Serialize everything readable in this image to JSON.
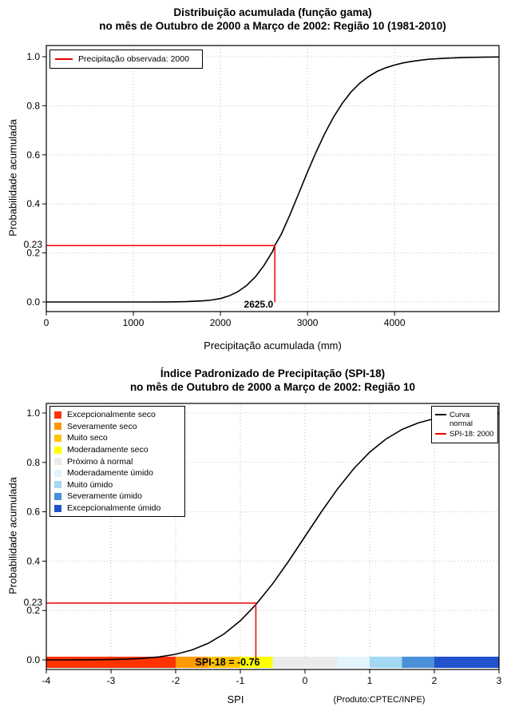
{
  "page": {
    "background": "#FFFFFF"
  },
  "chart_data": [
    {
      "type": "line",
      "title": "Distribuição acumulada (função gama)",
      "subtitle": "no mês de Outubro de 2000 a Março de 2002: Região 10 (1981-2010)",
      "xlabel": "Precipitação acumulada (mm)",
      "ylabel": "Probabilidade acumulada",
      "xlim": [
        0,
        5200
      ],
      "ylim": [
        0,
        1
      ],
      "xticks": [
        0,
        1000,
        2000,
        3000,
        4000
      ],
      "xtick_labels": [
        "0",
        "1000",
        "2000",
        "3000",
        "4000"
      ],
      "yticks": [
        0,
        0.2,
        0.4,
        0.6,
        0.8,
        1
      ],
      "ytick_labels": [
        "0.0",
        "0.2",
        "0.4",
        "0.6",
        "0.8",
        "1.0"
      ],
      "grid": true,
      "legend_position": "top-left",
      "series": [
        {
          "id": "gamma-cdf",
          "color": "#000000",
          "points": [
            [
              0,
              0
            ],
            [
              300,
              0
            ],
            [
              600,
              0
            ],
            [
              900,
              0
            ],
            [
              1200,
              0.0001
            ],
            [
              1400,
              0.0004
            ],
            [
              1600,
              0.0012
            ],
            [
              1800,
              0.0045
            ],
            [
              1900,
              0.008
            ],
            [
              2000,
              0.014
            ],
            [
              2100,
              0.025
            ],
            [
              2200,
              0.042
            ],
            [
              2300,
              0.067
            ],
            [
              2400,
              0.102
            ],
            [
              2500,
              0.149
            ],
            [
              2600,
              0.207
            ],
            [
              2625,
              0.23
            ],
            [
              2700,
              0.277
            ],
            [
              2800,
              0.357
            ],
            [
              2900,
              0.443
            ],
            [
              3000,
              0.53
            ],
            [
              3100,
              0.612
            ],
            [
              3200,
              0.688
            ],
            [
              3300,
              0.754
            ],
            [
              3400,
              0.81
            ],
            [
              3500,
              0.856
            ],
            [
              3600,
              0.892
            ],
            [
              3700,
              0.919
            ],
            [
              3800,
              0.94
            ],
            [
              3900,
              0.955
            ],
            [
              4000,
              0.966
            ],
            [
              4100,
              0.975
            ],
            [
              4200,
              0.981
            ],
            [
              4300,
              0.986
            ],
            [
              4400,
              0.99
            ],
            [
              4600,
              0.994
            ],
            [
              4800,
              0.997
            ],
            [
              5000,
              0.998
            ],
            [
              5200,
              0.999
            ]
          ]
        }
      ],
      "legend": [
        {
          "symbol": "line",
          "color": "#EE0000",
          "label": "Precipitação observada: 2000"
        }
      ],
      "annotation": {
        "color": "#EE0000",
        "x": 2625.0,
        "y": 0.23,
        "x_label": "2625.0",
        "y_label": "0.23"
      }
    },
    {
      "type": "line",
      "title": "Índice Padronizado de Precipitação (SPI-18)",
      "subtitle": "no mês de Outubro de 2000 a Março de 2002: Região 10",
      "xlabel": "SPI",
      "ylabel": "Probabilidade acumulada",
      "xlim": [
        -4,
        3
      ],
      "ylim": [
        0,
        1
      ],
      "xticks": [
        -4,
        -3,
        -2,
        -1,
        0,
        1,
        2,
        3
      ],
      "xtick_labels": [
        "-4",
        "-3",
        "-2",
        "-1",
        "0",
        "1",
        "2",
        "3"
      ],
      "yticks": [
        0,
        0.2,
        0.4,
        0.6,
        0.8,
        1
      ],
      "ytick_labels": [
        "0.0",
        "0.2",
        "0.4",
        "0.6",
        "0.8",
        "1.0"
      ],
      "grid": true,
      "series": [
        {
          "id": "normal-cdf",
          "color": "#000000",
          "points": [
            [
              -4,
              0
            ],
            [
              -3.75,
              0.0001
            ],
            [
              -3.5,
              0.0002
            ],
            [
              -3.25,
              0.0006
            ],
            [
              -3,
              0.0013
            ],
            [
              -2.75,
              0.003
            ],
            [
              -2.5,
              0.0062
            ],
            [
              -2.25,
              0.0122
            ],
            [
              -2,
              0.0228
            ],
            [
              -1.75,
              0.0401
            ],
            [
              -1.5,
              0.0668
            ],
            [
              -1.25,
              0.1056
            ],
            [
              -1,
              0.1587
            ],
            [
              -0.76,
              0.2236
            ],
            [
              -0.5,
              0.3085
            ],
            [
              -0.25,
              0.4013
            ],
            [
              0,
              0.5
            ],
            [
              0.25,
              0.5987
            ],
            [
              0.5,
              0.6915
            ],
            [
              0.75,
              0.7734
            ],
            [
              1,
              0.8413
            ],
            [
              1.25,
              0.8944
            ],
            [
              1.5,
              0.9332
            ],
            [
              1.75,
              0.9599
            ],
            [
              2,
              0.9772
            ],
            [
              2.25,
              0.9878
            ],
            [
              2.5,
              0.9938
            ],
            [
              2.75,
              0.997
            ],
            [
              3,
              0.9987
            ]
          ]
        }
      ],
      "legend_lines": [
        {
          "symbol": "line",
          "color": "#000000",
          "label": "Curva normal",
          "label_lines": [
            "Curva",
            "normal"
          ]
        },
        {
          "symbol": "line",
          "color": "#EE0000",
          "label": "SPI-18: 2000",
          "label_lines": [
            "SPI-18: 2000"
          ]
        }
      ],
      "categories": [
        {
          "label": "Excepcionalmente seco",
          "color": "#FF3300",
          "from": -4,
          "to": -2
        },
        {
          "label": "Severamente seco",
          "color": "#FF9900",
          "from": -2,
          "to": -1.5
        },
        {
          "label": "Muito seco",
          "color": "#FFC400",
          "from": -1.5,
          "to": -1
        },
        {
          "label": "Moderadamente seco",
          "color": "#FFFF00",
          "from": -1,
          "to": -0.5
        },
        {
          "label": "Próximo à normal",
          "color": "#EBEBEB",
          "from": -0.5,
          "to": 0.5
        },
        {
          "label": "Moderadamente úmido",
          "color": "#E2F4FD",
          "from": 0.5,
          "to": 1
        },
        {
          "label": "Muito úmido",
          "color": "#A3D8F2",
          "from": 1,
          "to": 1.5
        },
        {
          "label": "Severamente úmido",
          "color": "#4A90D9",
          "from": 1.5,
          "to": 2
        },
        {
          "label": "Excepcionalmente úmido",
          "color": "#2152CC",
          "from": 2,
          "to": 3
        }
      ],
      "annotation": {
        "color": "#EE0000",
        "x": -0.76,
        "y": 0.23,
        "y_label": "0.23"
      },
      "result_label": "SPI-18 = -0.76",
      "credit": "(Produto:CPTEC/INPE)"
    }
  ]
}
